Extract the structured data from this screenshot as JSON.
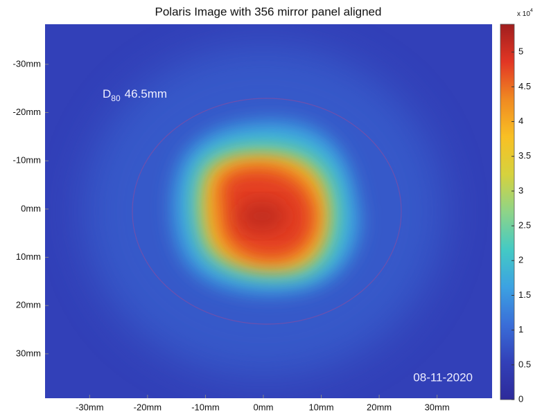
{
  "chart_data": {
    "type": "heatmap",
    "title": "Polaris Image with 356 mirror panel aligned",
    "annotation": {
      "symbol": "D",
      "subscript": "80",
      "text": "46.5mm"
    },
    "date": "08-11-2020",
    "xlim": [
      -37.7,
      39.5
    ],
    "xticks": [
      {
        "value": -30,
        "label": "-30mm"
      },
      {
        "value": -20,
        "label": "-20mm"
      },
      {
        "value": -10,
        "label": "-10mm"
      },
      {
        "value": 0,
        "label": "0mm"
      },
      {
        "value": 10,
        "label": "10mm"
      },
      {
        "value": 20,
        "label": "20mm"
      },
      {
        "value": 30,
        "label": "30mm"
      }
    ],
    "ylim": [
      -38.3,
      39.2
    ],
    "yticks": [
      {
        "value": -30,
        "label": "-30mm"
      },
      {
        "value": -20,
        "label": "-20mm"
      },
      {
        "value": -10,
        "label": "-10mm"
      },
      {
        "value": 0,
        "label": "0mm"
      },
      {
        "value": 10,
        "label": "10mm"
      },
      {
        "value": 20,
        "label": "20mm"
      },
      {
        "value": 30,
        "label": "30mm"
      }
    ],
    "colorbar": {
      "multiplier": "x 10",
      "exponent": "4",
      "clim": [
        0,
        5.4
      ],
      "ticks": [
        0,
        0.5,
        1,
        1.5,
        2,
        2.5,
        3,
        3.5,
        4,
        4.5,
        5
      ],
      "colors": [
        "#2d2a9a",
        "#3240b8",
        "#3a6ed8",
        "#3ca2e2",
        "#44cac4",
        "#8ed488",
        "#d6d23e",
        "#f8c024",
        "#f08a22",
        "#e23624",
        "#a01e1e"
      ]
    }
  }
}
